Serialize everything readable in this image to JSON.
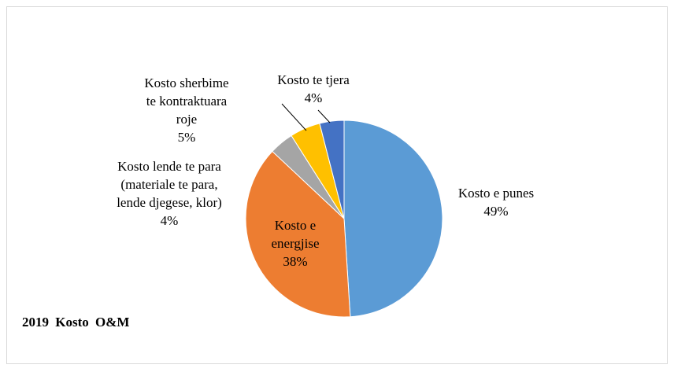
{
  "chart_data": {
    "type": "pie",
    "title": "2019 Kosto O&M",
    "categories": [
      "Kosto e punes",
      "Kosto e energjise",
      "Kosto lende te para (materiale te para, lende djegese, klor)",
      "Kosto sherbime te kontraktuara roje",
      "Kosto te tjera"
    ],
    "values": [
      49,
      38,
      4,
      5,
      4
    ],
    "value_labels": [
      "49%",
      "38%",
      "4%",
      "5%",
      "4%"
    ],
    "colors": [
      "#5b9bd5",
      "#ed7d31",
      "#a5a5a5",
      "#ffc000",
      "#4472c4"
    ]
  }
}
